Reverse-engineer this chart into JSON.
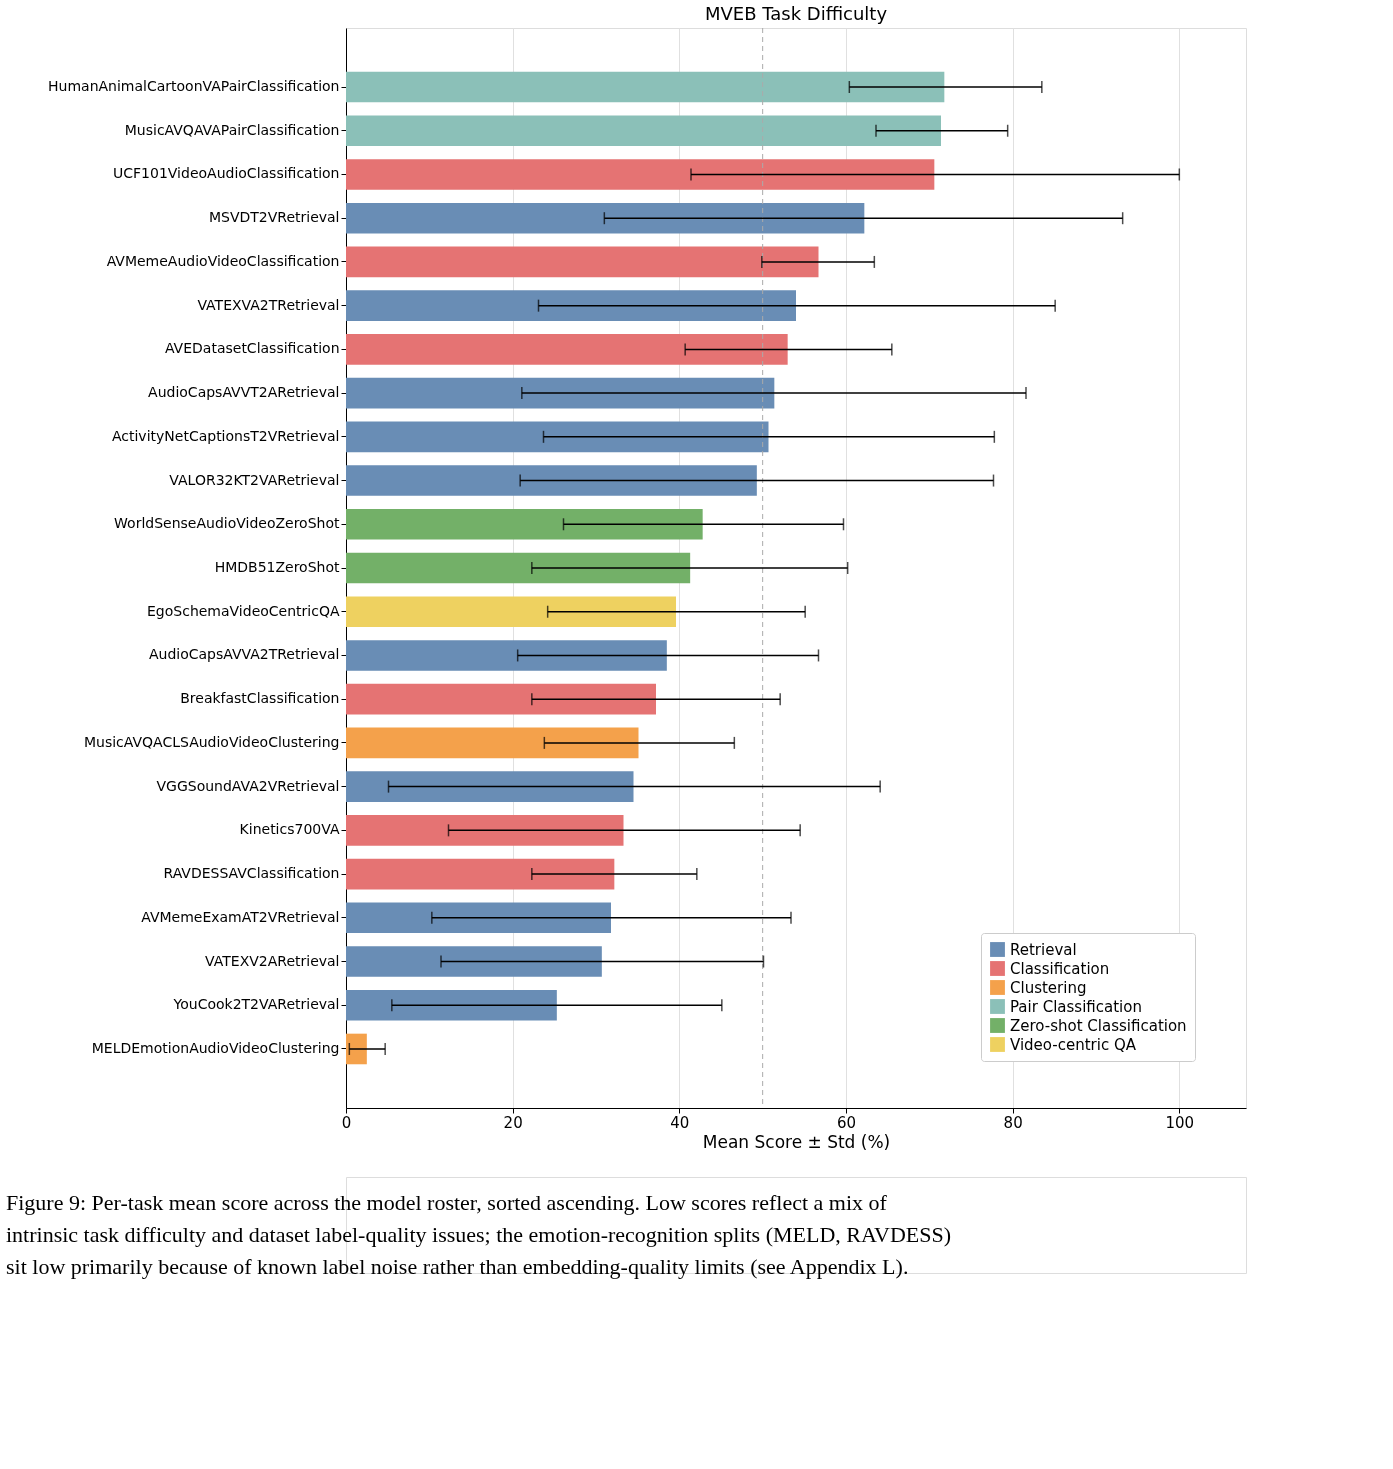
{
  "chart_data": {
    "type": "bar",
    "orientation": "horizontal",
    "title": "MVEB Task Difficulty",
    "xlabel": "Mean Score ± Std (%)",
    "categories": [
      "HumanAnimalCartoonVAPairClassification",
      "MusicAVQAVAPairClassification",
      "UCF101VideoAudioClassification",
      "MSVDT2VRetrieval",
      "AVMemeAudioVideoClassification",
      "VATEXVA2TRetrieval",
      "AVEDatasetClassification",
      "AudioCapsAVVT2ARetrieval",
      "ActivityNetCaptionsT2VRetrieval",
      "VALOR32KT2VARetrieval",
      "WorldSenseAudioVideoZeroShot",
      "HMDB51ZeroShot",
      "EgoSchemaVideoCentricQA",
      "AudioCapsAVVA2TRetrieval",
      "BreakfastClassification",
      "MusicAVQACLSAudioVideoClustering",
      "VGGSoundAVA2VRetrieval",
      "Kinetics700VA",
      "RAVDESSAVClassification",
      "AVMemeExamAT2VRetrieval",
      "VATEXV2ARetrieval",
      "YouCook2T2VARetrieval",
      "MELDEmotionAudioVideoClustering"
    ],
    "series": [
      {
        "name": "Retrieval",
        "color": "#698db5",
        "values": [
          null,
          null,
          null,
          62.2,
          null,
          54.0,
          null,
          51.4,
          50.7,
          49.3,
          null,
          null,
          null,
          38.5,
          null,
          null,
          34.5,
          null,
          null,
          31.8,
          30.7,
          25.3,
          null
        ],
        "errors": [
          null,
          null,
          null,
          [
            31.0,
            93.2
          ],
          null,
          [
            23.1,
            85.1
          ],
          null,
          [
            21.1,
            81.6
          ],
          [
            23.7,
            77.8
          ],
          [
            20.9,
            77.7
          ],
          null,
          null,
          null,
          [
            20.6,
            56.7
          ],
          null,
          null,
          [
            5.1,
            64.1
          ],
          null,
          null,
          [
            10.3,
            53.4
          ],
          [
            11.4,
            50.1
          ],
          [
            5.5,
            45.1
          ],
          null
        ]
      },
      {
        "name": "Classification",
        "color": "#e57373",
        "values": [
          null,
          null,
          70.6,
          null,
          56.7,
          null,
          53.0,
          null,
          null,
          null,
          null,
          null,
          null,
          null,
          37.2,
          null,
          null,
          33.3,
          32.2,
          null,
          null,
          null,
          null
        ],
        "errors": [
          null,
          null,
          [
            41.4,
            100
          ],
          null,
          [
            49.9,
            63.4
          ],
          null,
          [
            40.7,
            65.5
          ],
          null,
          null,
          null,
          null,
          null,
          null,
          null,
          [
            22.3,
            52.1
          ],
          null,
          null,
          [
            12.3,
            54.5
          ],
          [
            22.3,
            42.1
          ],
          null,
          null,
          null,
          null
        ]
      },
      {
        "name": "Clustering",
        "color": "#f4a14b",
        "values": [
          null,
          null,
          null,
          null,
          null,
          null,
          null,
          null,
          null,
          null,
          null,
          null,
          null,
          null,
          null,
          35.1,
          null,
          null,
          null,
          null,
          null,
          null,
          2.5
        ],
        "errors": [
          null,
          null,
          null,
          null,
          null,
          null,
          null,
          null,
          null,
          null,
          null,
          null,
          null,
          null,
          null,
          [
            23.8,
            46.6
          ],
          null,
          null,
          null,
          null,
          null,
          null,
          [
            0.4,
            4.7
          ]
        ]
      },
      {
        "name": "Pair Classification",
        "color": "#8bc0b8",
        "values": [
          71.8,
          71.4,
          null,
          null,
          null,
          null,
          null,
          null,
          null,
          null,
          null,
          null,
          null,
          null,
          null,
          null,
          null,
          null,
          null,
          null,
          null,
          null,
          null
        ],
        "errors": [
          [
            60.4,
            83.5
          ],
          [
            63.6,
            79.4
          ],
          null,
          null,
          null,
          null,
          null,
          null,
          null,
          null,
          null,
          null,
          null,
          null,
          null,
          null,
          null,
          null,
          null,
          null,
          null,
          null,
          null
        ]
      },
      {
        "name": "Zero-shot Classification",
        "color": "#73b068",
        "values": [
          null,
          null,
          null,
          null,
          null,
          null,
          null,
          null,
          null,
          null,
          42.8,
          41.3,
          null,
          null,
          null,
          null,
          null,
          null,
          null,
          null,
          null,
          null,
          null
        ],
        "errors": [
          null,
          null,
          null,
          null,
          null,
          null,
          null,
          null,
          null,
          null,
          [
            26.1,
            59.7
          ],
          [
            22.3,
            60.2
          ],
          null,
          null,
          null,
          null,
          null,
          null,
          null,
          null,
          null,
          null,
          null
        ]
      },
      {
        "name": "Video-centric QA",
        "color": "#eed160",
        "values": [
          null,
          null,
          null,
          null,
          null,
          null,
          null,
          null,
          null,
          null,
          null,
          null,
          39.6,
          null,
          null,
          null,
          null,
          null,
          null,
          null,
          null,
          null,
          null
        ],
        "errors": [
          null,
          null,
          null,
          null,
          null,
          null,
          null,
          null,
          null,
          null,
          null,
          null,
          [
            24.2,
            55.1
          ],
          null,
          null,
          null,
          null,
          null,
          null,
          null,
          null,
          null,
          null
        ]
      }
    ],
    "xlim": [
      0,
      108
    ],
    "xticks": [
      0,
      20,
      40,
      60,
      80,
      100
    ],
    "grid": "x",
    "legend": "bottom right",
    "ref_lines": [
      {
        "axis": "x",
        "value": 50,
        "color": "#aaaaaa",
        "line_style": "dashed"
      }
    ],
    "annotations": [
      "Figure 9: Per-task mean score across the model roster, sorted ascending. Low scores reflect a mix of intrinsic task difficulty and dataset label-quality issues; the emotion-recognition splits (MELD, RAVDESS) sit low primarily because of known label noise rather than embedding-quality limits (see Appendix L)."
    ]
  }
}
